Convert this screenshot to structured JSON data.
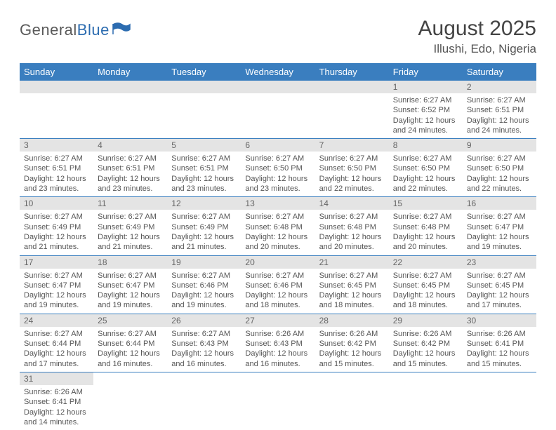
{
  "logo": {
    "text1": "General",
    "text2": "Blue"
  },
  "title": "August 2025",
  "location": "Illushi, Edo, Nigeria",
  "colors": {
    "header_bg": "#3a7ebf",
    "header_text": "#ffffff",
    "daynum_bg": "#e4e4e4",
    "daynum_text": "#666666",
    "body_text": "#555555",
    "rule": "#3a7ebf",
    "logo_gray": "#5a5a5a",
    "logo_blue": "#2c6cb0"
  },
  "dayHeaders": [
    "Sunday",
    "Monday",
    "Tuesday",
    "Wednesday",
    "Thursday",
    "Friday",
    "Saturday"
  ],
  "weeks": [
    [
      null,
      null,
      null,
      null,
      null,
      {
        "n": "1",
        "sr": "6:27 AM",
        "ss": "6:52 PM",
        "dl": "12 hours and 24 minutes."
      },
      {
        "n": "2",
        "sr": "6:27 AM",
        "ss": "6:51 PM",
        "dl": "12 hours and 24 minutes."
      }
    ],
    [
      {
        "n": "3",
        "sr": "6:27 AM",
        "ss": "6:51 PM",
        "dl": "12 hours and 23 minutes."
      },
      {
        "n": "4",
        "sr": "6:27 AM",
        "ss": "6:51 PM",
        "dl": "12 hours and 23 minutes."
      },
      {
        "n": "5",
        "sr": "6:27 AM",
        "ss": "6:51 PM",
        "dl": "12 hours and 23 minutes."
      },
      {
        "n": "6",
        "sr": "6:27 AM",
        "ss": "6:50 PM",
        "dl": "12 hours and 23 minutes."
      },
      {
        "n": "7",
        "sr": "6:27 AM",
        "ss": "6:50 PM",
        "dl": "12 hours and 22 minutes."
      },
      {
        "n": "8",
        "sr": "6:27 AM",
        "ss": "6:50 PM",
        "dl": "12 hours and 22 minutes."
      },
      {
        "n": "9",
        "sr": "6:27 AM",
        "ss": "6:50 PM",
        "dl": "12 hours and 22 minutes."
      }
    ],
    [
      {
        "n": "10",
        "sr": "6:27 AM",
        "ss": "6:49 PM",
        "dl": "12 hours and 21 minutes."
      },
      {
        "n": "11",
        "sr": "6:27 AM",
        "ss": "6:49 PM",
        "dl": "12 hours and 21 minutes."
      },
      {
        "n": "12",
        "sr": "6:27 AM",
        "ss": "6:49 PM",
        "dl": "12 hours and 21 minutes."
      },
      {
        "n": "13",
        "sr": "6:27 AM",
        "ss": "6:48 PM",
        "dl": "12 hours and 20 minutes."
      },
      {
        "n": "14",
        "sr": "6:27 AM",
        "ss": "6:48 PM",
        "dl": "12 hours and 20 minutes."
      },
      {
        "n": "15",
        "sr": "6:27 AM",
        "ss": "6:48 PM",
        "dl": "12 hours and 20 minutes."
      },
      {
        "n": "16",
        "sr": "6:27 AM",
        "ss": "6:47 PM",
        "dl": "12 hours and 19 minutes."
      }
    ],
    [
      {
        "n": "17",
        "sr": "6:27 AM",
        "ss": "6:47 PM",
        "dl": "12 hours and 19 minutes."
      },
      {
        "n": "18",
        "sr": "6:27 AM",
        "ss": "6:47 PM",
        "dl": "12 hours and 19 minutes."
      },
      {
        "n": "19",
        "sr": "6:27 AM",
        "ss": "6:46 PM",
        "dl": "12 hours and 19 minutes."
      },
      {
        "n": "20",
        "sr": "6:27 AM",
        "ss": "6:46 PM",
        "dl": "12 hours and 18 minutes."
      },
      {
        "n": "21",
        "sr": "6:27 AM",
        "ss": "6:45 PM",
        "dl": "12 hours and 18 minutes."
      },
      {
        "n": "22",
        "sr": "6:27 AM",
        "ss": "6:45 PM",
        "dl": "12 hours and 18 minutes."
      },
      {
        "n": "23",
        "sr": "6:27 AM",
        "ss": "6:45 PM",
        "dl": "12 hours and 17 minutes."
      }
    ],
    [
      {
        "n": "24",
        "sr": "6:27 AM",
        "ss": "6:44 PM",
        "dl": "12 hours and 17 minutes."
      },
      {
        "n": "25",
        "sr": "6:27 AM",
        "ss": "6:44 PM",
        "dl": "12 hours and 16 minutes."
      },
      {
        "n": "26",
        "sr": "6:27 AM",
        "ss": "6:43 PM",
        "dl": "12 hours and 16 minutes."
      },
      {
        "n": "27",
        "sr": "6:26 AM",
        "ss": "6:43 PM",
        "dl": "12 hours and 16 minutes."
      },
      {
        "n": "28",
        "sr": "6:26 AM",
        "ss": "6:42 PM",
        "dl": "12 hours and 15 minutes."
      },
      {
        "n": "29",
        "sr": "6:26 AM",
        "ss": "6:42 PM",
        "dl": "12 hours and 15 minutes."
      },
      {
        "n": "30",
        "sr": "6:26 AM",
        "ss": "6:41 PM",
        "dl": "12 hours and 15 minutes."
      }
    ],
    [
      {
        "n": "31",
        "sr": "6:26 AM",
        "ss": "6:41 PM",
        "dl": "12 hours and 14 minutes."
      },
      null,
      null,
      null,
      null,
      null,
      null
    ]
  ],
  "labels": {
    "sunrise": "Sunrise: ",
    "sunset": "Sunset: ",
    "daylight": "Daylight: "
  }
}
